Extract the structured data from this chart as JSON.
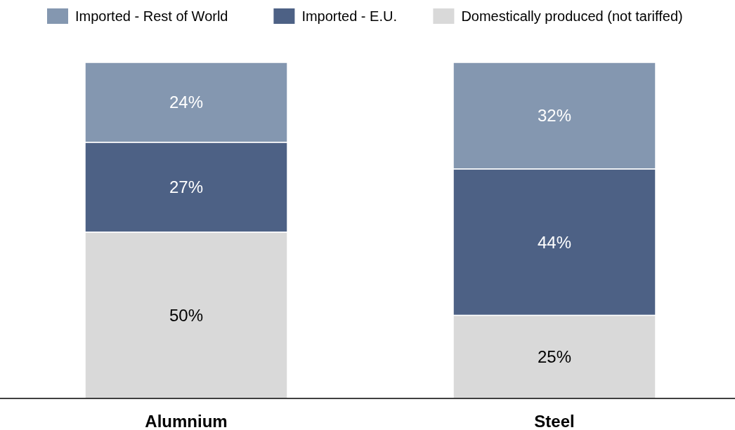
{
  "chart_data": {
    "type": "bar",
    "stacked": true,
    "categories": [
      "Alumnium",
      "Steel"
    ],
    "series": [
      {
        "name": "Domestically produced (not tariffed)",
        "color": "#d9d9d9",
        "values": [
          50,
          25
        ],
        "value_labels": [
          "50%",
          "25%"
        ]
      },
      {
        "name": "Imported - E.U.",
        "color": "#4d6185",
        "values": [
          27,
          44
        ],
        "value_labels": [
          "27%",
          "44%"
        ]
      },
      {
        "name": "Imported - Rest of World",
        "color": "#8497b0",
        "values": [
          24,
          32
        ],
        "value_labels": [
          "24%",
          "32%"
        ]
      }
    ],
    "legend": "top"
  }
}
